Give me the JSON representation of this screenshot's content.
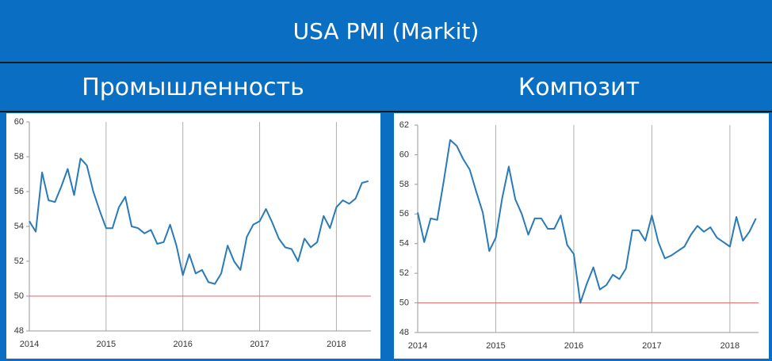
{
  "header": {
    "title": "USA PMI (Markit)"
  },
  "chart_data": [
    {
      "type": "line",
      "title": "Промышленность",
      "color": "#2a7ab8",
      "categories": [
        "2014",
        null,
        null,
        null,
        null,
        null,
        null,
        null,
        null,
        null,
        null,
        null,
        "2015",
        null,
        null,
        null,
        null,
        null,
        null,
        null,
        null,
        null,
        null,
        null,
        "2016",
        null,
        null,
        null,
        null,
        null,
        null,
        null,
        null,
        null,
        null,
        null,
        "2017",
        null,
        null,
        null,
        null,
        null,
        null,
        null,
        null,
        null,
        null,
        null,
        "2018",
        null,
        null,
        null,
        null,
        null
      ],
      "values": [
        54.3,
        53.7,
        57.1,
        55.5,
        55.4,
        56.3,
        57.3,
        55.8,
        57.9,
        57.5,
        56.0,
        54.9,
        53.9,
        53.9,
        55.1,
        55.7,
        54.0,
        53.9,
        53.6,
        53.8,
        53.0,
        53.1,
        54.1,
        52.9,
        51.2,
        52.4,
        51.3,
        51.5,
        50.8,
        50.7,
        51.3,
        52.9,
        52.0,
        51.5,
        53.4,
        54.1,
        54.3,
        55.0,
        54.2,
        53.3,
        52.8,
        52.7,
        52.0,
        53.3,
        52.8,
        53.1,
        54.6,
        53.9,
        55.1,
        55.5,
        55.3,
        55.6,
        56.5,
        56.6
      ],
      "ylim": [
        48,
        60
      ],
      "yticks": [
        48,
        50,
        52,
        54,
        56,
        58,
        60
      ],
      "reference_line": 50,
      "reference_color": "#e06666",
      "grid": true
    },
    {
      "type": "line",
      "title": "Композит",
      "color": "#2a7ab8",
      "categories": [
        "2014",
        null,
        null,
        null,
        null,
        null,
        null,
        null,
        null,
        null,
        null,
        null,
        "2015",
        null,
        null,
        null,
        null,
        null,
        null,
        null,
        null,
        null,
        null,
        null,
        "2016",
        null,
        null,
        null,
        null,
        null,
        null,
        null,
        null,
        null,
        null,
        null,
        "2017",
        null,
        null,
        null,
        null,
        null,
        null,
        null,
        null,
        null,
        null,
        null,
        "2018",
        null,
        null,
        null,
        null
      ],
      "values": [
        56.1,
        54.1,
        55.7,
        55.6,
        58.2,
        61.0,
        60.6,
        59.7,
        59.0,
        57.5,
        56.1,
        53.5,
        54.4,
        57.1,
        59.2,
        57.0,
        56.0,
        54.6,
        55.7,
        55.7,
        55.0,
        55.0,
        55.9,
        53.9,
        53.3,
        50.0,
        51.3,
        52.4,
        50.9,
        51.2,
        51.9,
        51.6,
        52.3,
        54.9,
        54.9,
        54.2,
        55.9,
        54.1,
        53.0,
        53.2,
        53.5,
        53.8,
        54.6,
        55.2,
        54.8,
        55.1,
        54.4,
        54.1,
        53.8,
        55.8,
        54.2,
        54.8,
        55.7
      ],
      "ylim": [
        48,
        62
      ],
      "yticks": [
        48,
        50,
        52,
        54,
        56,
        58,
        60,
        62
      ],
      "reference_line": 50,
      "reference_color": "#e06666",
      "grid": true
    }
  ]
}
